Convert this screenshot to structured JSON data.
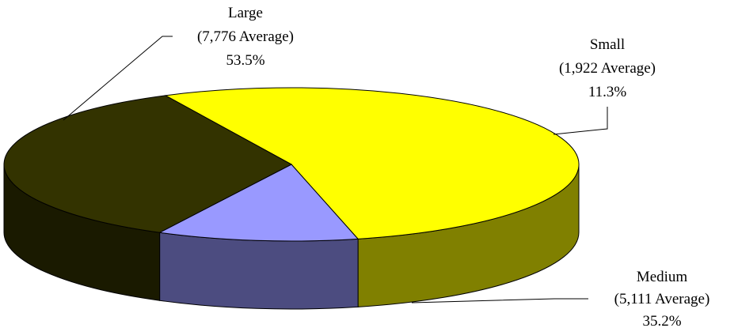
{
  "chart_data": {
    "type": "pie",
    "style": "3d",
    "slices": [
      {
        "name": "Small",
        "avg_label": "(1,922 Average)",
        "pct_label": "11.3%",
        "value": 11.3,
        "top_color": "#9999ff",
        "side_color": "#4c4c80"
      },
      {
        "name": "Medium",
        "avg_label": "(5,111 Average)",
        "pct_label": "35.2%",
        "value": 35.2,
        "top_color": "#333300",
        "side_color": "#1a1a00"
      },
      {
        "name": "Large",
        "avg_label": "(7,776 Average)",
        "pct_label": "53.5%",
        "value": 53.5,
        "top_color": "#ffff00",
        "side_color": "#808000"
      }
    ],
    "legend": "none"
  }
}
